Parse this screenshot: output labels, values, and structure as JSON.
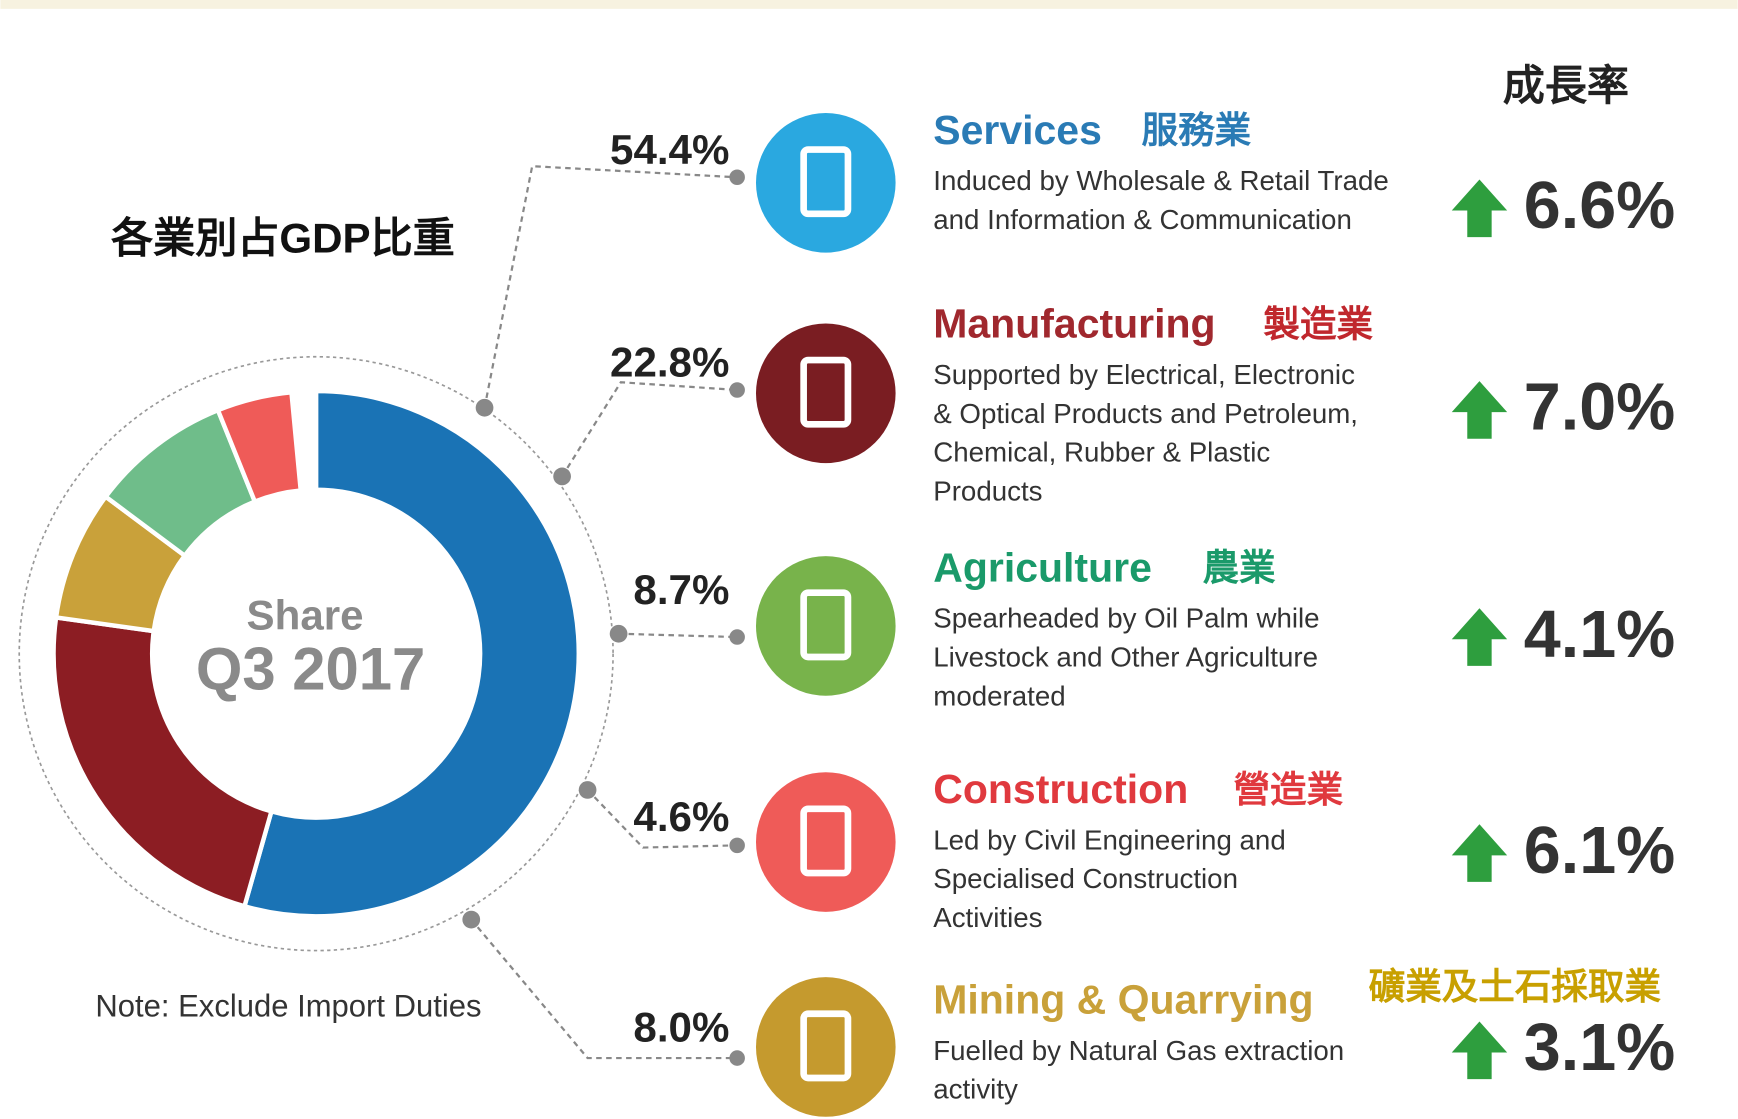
{
  "chart_data": {
    "type": "pie",
    "growth_header": "成長率",
    "subtitle": "各業別占GDP比重",
    "center_label": [
      "Share",
      "Q3 2017"
    ],
    "note": "Note: Exclude Import Duties",
    "categories": [
      "Services",
      "Manufacturing",
      "Agriculture",
      "Construction",
      "Mining & Quarrying"
    ],
    "names_zh": [
      "服務業",
      "製造業",
      "農業",
      "營造業",
      "礦業及土石採取業"
    ],
    "descriptions": [
      [
        "Induced by Wholesale & Retail Trade",
        "and Information & Communication"
      ],
      [
        "Supported by Electrical, Electronic",
        "& Optical Products and Petroleum,",
        "Chemical, Rubber & Plastic",
        "Products"
      ],
      [
        "Spearheaded by Oil Palm while",
        "Livestock and Other Agriculture",
        "moderated"
      ],
      [
        "Led by Civil Engineering and",
        "Specialised Construction",
        "Activities"
      ],
      [
        "Fuelled by Natural Gas extraction",
        "activity"
      ]
    ],
    "values": [
      54.4,
      22.8,
      8.7,
      4.6,
      8.0
    ],
    "value_labels": [
      "54.4%",
      "22.8%",
      "8.7%",
      "4.6%",
      "8.0%"
    ],
    "growth_labels": [
      "6.6%",
      "7.0%",
      "4.1%",
      "6.1%",
      "3.1%"
    ],
    "colors": [
      "#1a73b5",
      "#8c1d23",
      "#6fbd8a",
      "#ef5b58",
      "#c9a13a"
    ]
  }
}
